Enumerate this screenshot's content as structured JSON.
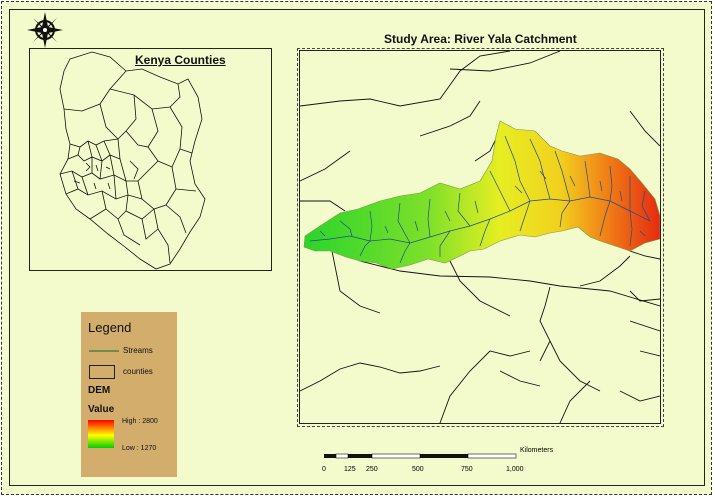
{
  "inset": {
    "title": "Kenya Counties"
  },
  "main": {
    "title": "Study Area: River Yala Catchment"
  },
  "legend": {
    "title": "Legend",
    "streams_label": "Streams",
    "counties_label": "counties",
    "dem_heading": "DEM",
    "value_heading": "Value",
    "high_label": "High : 2800",
    "low_label": "Low : 1270",
    "ramp_colors": [
      "#ff0000",
      "#ffff00",
      "#00cc00"
    ],
    "stream_color": "#2e7d32"
  },
  "scalebar": {
    "unit": "Kilometers",
    "ticks": [
      "0",
      "125",
      "250",
      "500",
      "750",
      "1,000"
    ]
  },
  "colors": {
    "page_background": "#f3fbcd",
    "legend_background": "#d2ad6c",
    "dem_low": "#00c000",
    "dem_mid": "#ffff00",
    "dem_high": "#ff0000"
  },
  "icons": {
    "north_arrow": "compass-rose-icon"
  }
}
